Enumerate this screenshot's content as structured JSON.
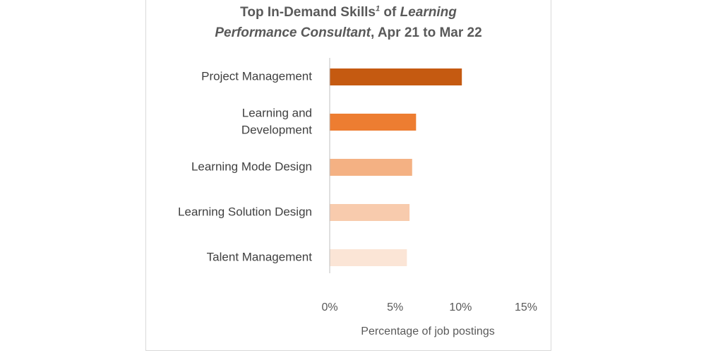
{
  "chart_data": {
    "type": "bar",
    "orientation": "horizontal",
    "title": {
      "line1_part1": "Top In-Demand Skills",
      "footnote_marker": "1",
      "line1_part2": " of ",
      "line1_part3_italic": "Learning",
      "line2_italic": "Performance Consultant",
      "line2_rest": ", Apr 21 to Mar 22"
    },
    "categories": [
      [
        "Project Management"
      ],
      [
        "Learning and",
        "Development"
      ],
      [
        "Learning Mode Design"
      ],
      [
        "Learning Solution Design"
      ],
      [
        "Talent Management"
      ]
    ],
    "values": [
      10.1,
      6.6,
      6.3,
      6.1,
      5.9
    ],
    "bar_colors": [
      "#c55a11",
      "#ed7d31",
      "#f4b183",
      "#f8cbad",
      "#fbe5d6"
    ],
    "xlim": [
      0,
      15
    ],
    "xticks": [
      0,
      5,
      10,
      15
    ],
    "xtick_labels": [
      "0%",
      "5%",
      "10%",
      "15%"
    ],
    "xlabel": "Percentage of job postings",
    "grid": false,
    "legend": "none"
  }
}
